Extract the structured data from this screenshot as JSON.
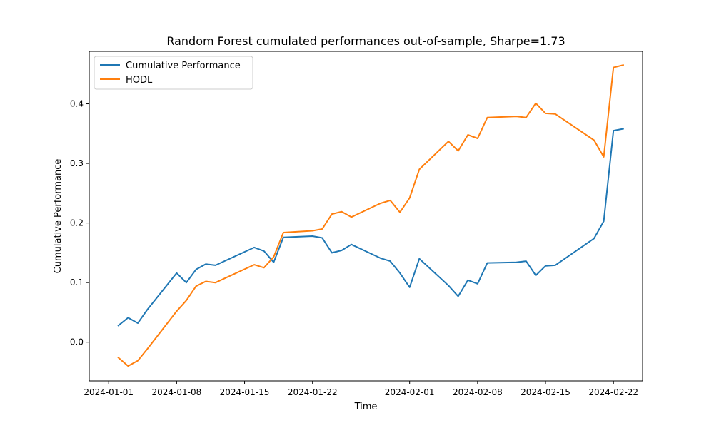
{
  "chart_data": {
    "type": "line",
    "title": "Random Forest cumulated performances out-of-sample, Sharpe=1.73",
    "xlabel": "Time",
    "ylabel": "Cumulative Performance",
    "xlim": [
      "2023-12-30",
      "2024-02-25"
    ],
    "ylim": [
      -0.065,
      0.488
    ],
    "xticks": [
      "2024-01-01",
      "2024-01-08",
      "2024-01-15",
      "2024-01-22",
      "2024-02-01",
      "2024-02-08",
      "2024-02-15",
      "2024-02-22"
    ],
    "yticks": [
      "0.0",
      "0.1",
      "0.2",
      "0.3",
      "0.4"
    ],
    "legend_position": "upper left",
    "x": [
      "2024-01-02",
      "2024-01-03",
      "2024-01-04",
      "2024-01-05",
      "2024-01-08",
      "2024-01-09",
      "2024-01-10",
      "2024-01-11",
      "2024-01-12",
      "2024-01-16",
      "2024-01-17",
      "2024-01-18",
      "2024-01-19",
      "2024-01-22",
      "2024-01-23",
      "2024-01-24",
      "2024-01-25",
      "2024-01-26",
      "2024-01-29",
      "2024-01-30",
      "2024-01-31",
      "2024-02-01",
      "2024-02-02",
      "2024-02-05",
      "2024-02-06",
      "2024-02-07",
      "2024-02-08",
      "2024-02-09",
      "2024-02-12",
      "2024-02-13",
      "2024-02-14",
      "2024-02-15",
      "2024-02-16",
      "2024-02-20",
      "2024-02-21",
      "2024-02-22",
      "2024-02-23"
    ],
    "series": [
      {
        "name": "Cumulative Performance",
        "color": "#1f77b4",
        "values": [
          0.028,
          0.041,
          0.032,
          0.055,
          0.116,
          0.1,
          0.122,
          0.131,
          0.129,
          0.159,
          0.153,
          0.134,
          0.176,
          0.178,
          0.175,
          0.15,
          0.154,
          0.164,
          0.141,
          0.136,
          0.116,
          0.092,
          0.14,
          0.095,
          0.077,
          0.104,
          0.098,
          0.133,
          0.134,
          0.136,
          0.112,
          0.128,
          0.129,
          0.174,
          0.203,
          0.355,
          0.358
        ]
      },
      {
        "name": "HODL",
        "color": "#ff7f0e",
        "values": [
          -0.026,
          -0.04,
          -0.031,
          -0.011,
          0.052,
          0.07,
          0.094,
          0.102,
          0.1,
          0.13,
          0.125,
          0.143,
          0.184,
          0.187,
          0.19,
          0.215,
          0.219,
          0.21,
          0.233,
          0.238,
          0.218,
          0.242,
          0.29,
          0.337,
          0.321,
          0.348,
          0.342,
          0.377,
          0.379,
          0.377,
          0.401,
          0.384,
          0.383,
          0.339,
          0.311,
          0.461,
          0.465
        ]
      }
    ]
  }
}
